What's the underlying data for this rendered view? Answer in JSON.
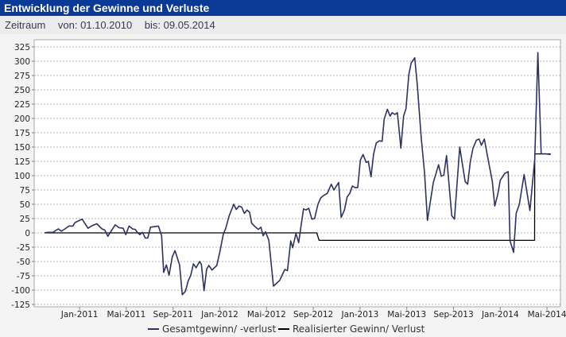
{
  "header": {
    "title": "Entwicklung der Gewinne und Verluste"
  },
  "period": {
    "label": "Zeitraum",
    "from": "von: 01.10.2010",
    "to": "bis: 09.05.2014"
  },
  "colors": {
    "header": "#0b3a96",
    "series_total": "#2e3262",
    "series_realized": "#000000"
  },
  "chart_data": {
    "type": "line",
    "title": "Entwicklung der Gewinne und Verluste",
    "xlabel": "",
    "ylabel": "",
    "x_unit": "months since 01.10.2010",
    "xlim": [
      0,
      44.7
    ],
    "ylim": [
      -125,
      325
    ],
    "yticks": [
      -125,
      -100,
      -75,
      -50,
      -25,
      0,
      25,
      50,
      75,
      100,
      125,
      150,
      175,
      200,
      225,
      250,
      275,
      300,
      325
    ],
    "xticks": [
      {
        "m": 3,
        "label": "Jan-2011"
      },
      {
        "m": 7,
        "label": "Mai-2011"
      },
      {
        "m": 11,
        "label": "Sep-2011"
      },
      {
        "m": 15,
        "label": "Jan-2012"
      },
      {
        "m": 19,
        "label": "Mai-2012"
      },
      {
        "m": 23,
        "label": "Sep-2012"
      },
      {
        "m": 27,
        "label": "Jan-2013"
      },
      {
        "m": 31,
        "label": "Mai-2013"
      },
      {
        "m": 35,
        "label": "Sep-2013"
      },
      {
        "m": 39,
        "label": "Jan-2014"
      },
      {
        "m": 43,
        "label": "Mai-2014"
      }
    ],
    "grid": true,
    "legend_position": "bottom",
    "series": [
      {
        "name": "Gesamtgewinn/ -verlust",
        "color": "#2e3262",
        "points": [
          [
            0,
            0
          ],
          [
            0.27,
            1
          ],
          [
            0.73,
            1
          ],
          [
            1.18,
            7
          ],
          [
            1.45,
            3
          ],
          [
            1.75,
            7
          ],
          [
            2.09,
            12
          ],
          [
            2.43,
            12
          ],
          [
            2.61,
            18
          ],
          [
            3.22,
            24
          ],
          [
            3.72,
            8
          ],
          [
            4.01,
            12
          ],
          [
            4.47,
            16
          ],
          [
            4.92,
            7
          ],
          [
            5.15,
            5
          ],
          [
            5.42,
            -6
          ],
          [
            5.67,
            2
          ],
          [
            6.05,
            14
          ],
          [
            6.39,
            9
          ],
          [
            6.73,
            8
          ],
          [
            6.96,
            -3
          ],
          [
            7.23,
            12
          ],
          [
            7.53,
            7
          ],
          [
            7.76,
            6
          ],
          [
            7.98,
            0
          ],
          [
            8.16,
            -3
          ],
          [
            8.39,
            1
          ],
          [
            8.62,
            -9
          ],
          [
            8.84,
            -9
          ],
          [
            9.07,
            10
          ],
          [
            9.46,
            11
          ],
          [
            9.75,
            12
          ],
          [
            10.02,
            -5
          ],
          [
            10.2,
            -69
          ],
          [
            10.43,
            -56
          ],
          [
            10.66,
            -74
          ],
          [
            10.93,
            -42
          ],
          [
            11.16,
            -31
          ],
          [
            11.56,
            -56
          ],
          [
            11.79,
            -108
          ],
          [
            12.06,
            -102
          ],
          [
            12.29,
            -84
          ],
          [
            12.52,
            -74
          ],
          [
            12.74,
            -54
          ],
          [
            12.97,
            -61
          ],
          [
            13.27,
            -50
          ],
          [
            13.42,
            -55
          ],
          [
            13.65,
            -101
          ],
          [
            13.88,
            -63
          ],
          [
            14.06,
            -57
          ],
          [
            14.33,
            -65
          ],
          [
            14.74,
            -57
          ],
          [
            15.01,
            -33
          ],
          [
            15.29,
            -3
          ],
          [
            15.51,
            8
          ],
          [
            15.8,
            30
          ],
          [
            16.19,
            50
          ],
          [
            16.41,
            41
          ],
          [
            16.65,
            47
          ],
          [
            16.87,
            45
          ],
          [
            17.1,
            34
          ],
          [
            17.33,
            40
          ],
          [
            17.55,
            36
          ],
          [
            17.73,
            17
          ],
          [
            17.96,
            12
          ],
          [
            18.3,
            6
          ],
          [
            18.52,
            10
          ],
          [
            18.71,
            -5
          ],
          [
            18.91,
            2
          ],
          [
            19.2,
            -13
          ],
          [
            19.59,
            -93
          ],
          [
            20.12,
            -83
          ],
          [
            20.56,
            -64
          ],
          [
            20.79,
            -66
          ],
          [
            21.07,
            -14
          ],
          [
            21.24,
            -26
          ],
          [
            21.52,
            -1
          ],
          [
            21.75,
            -17
          ],
          [
            22.16,
            42
          ],
          [
            22.38,
            40
          ],
          [
            22.61,
            43
          ],
          [
            22.88,
            24
          ],
          [
            23.11,
            25
          ],
          [
            23.4,
            50
          ],
          [
            23.63,
            61
          ],
          [
            23.86,
            65
          ],
          [
            24.2,
            69
          ],
          [
            24.54,
            85
          ],
          [
            24.76,
            75
          ],
          [
            25.17,
            88
          ],
          [
            25.39,
            27
          ],
          [
            25.67,
            40
          ],
          [
            25.9,
            63
          ],
          [
            26.12,
            69
          ],
          [
            26.35,
            82
          ],
          [
            26.58,
            79
          ],
          [
            26.8,
            79
          ],
          [
            27.03,
            127
          ],
          [
            27.26,
            137
          ],
          [
            27.53,
            123
          ],
          [
            27.71,
            125
          ],
          [
            27.94,
            98
          ],
          [
            28.16,
            138
          ],
          [
            28.39,
            157
          ],
          [
            28.66,
            161
          ],
          [
            28.89,
            160
          ],
          [
            29.07,
            199
          ],
          [
            29.34,
            216
          ],
          [
            29.57,
            204
          ],
          [
            29.75,
            210
          ],
          [
            29.98,
            207
          ],
          [
            30.2,
            210
          ],
          [
            30.5,
            148
          ],
          [
            30.73,
            204
          ],
          [
            30.93,
            217
          ],
          [
            31.18,
            277
          ],
          [
            31.38,
            297
          ],
          [
            31.68,
            306
          ],
          [
            31.9,
            259
          ],
          [
            32.24,
            166
          ],
          [
            32.52,
            106
          ],
          [
            32.77,
            22
          ],
          [
            33.27,
            88
          ],
          [
            33.72,
            119
          ],
          [
            33.95,
            99
          ],
          [
            34.17,
            101
          ],
          [
            34.4,
            135
          ],
          [
            34.85,
            30
          ],
          [
            35.08,
            24
          ],
          [
            35.53,
            150
          ],
          [
            35.99,
            90
          ],
          [
            36.21,
            85
          ],
          [
            36.44,
            125
          ],
          [
            36.67,
            148
          ],
          [
            36.96,
            162
          ],
          [
            37.19,
            164
          ],
          [
            37.39,
            153
          ],
          [
            37.64,
            164
          ],
          [
            37.87,
            138
          ],
          [
            38.32,
            90
          ],
          [
            38.53,
            47
          ],
          [
            38.78,
            67
          ],
          [
            39.0,
            92
          ],
          [
            39.39,
            104
          ],
          [
            39.68,
            107
          ],
          [
            39.84,
            -14
          ],
          [
            40.14,
            -34
          ],
          [
            40.36,
            34
          ],
          [
            40.63,
            50
          ],
          [
            41.04,
            102
          ],
          [
            41.54,
            39
          ],
          [
            41.95,
            129
          ],
          [
            42.22,
            315
          ],
          [
            42.5,
            138
          ],
          [
            42.9,
            138
          ],
          [
            43.31,
            137
          ]
        ]
      },
      {
        "name": "Realisierter Gewinn/ Verlust",
        "color": "#000000",
        "points": [
          [
            0,
            0
          ],
          [
            23.3,
            0
          ],
          [
            23.5,
            -13
          ],
          [
            41.94,
            -13
          ],
          [
            41.95,
            138
          ],
          [
            43.31,
            138
          ]
        ]
      }
    ]
  }
}
